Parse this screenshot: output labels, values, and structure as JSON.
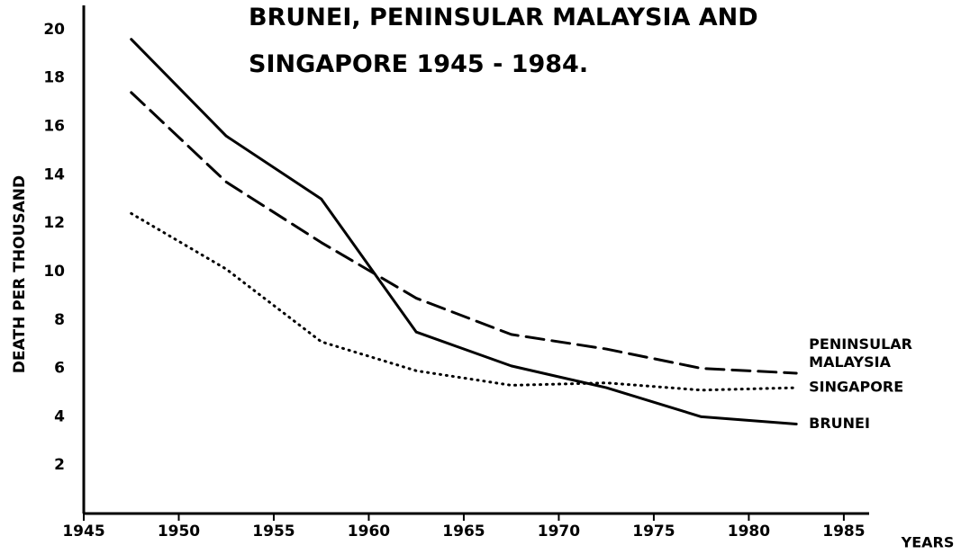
{
  "chart_data": {
    "type": "line",
    "title": [
      "BRUNEI, PENINSULAR MALAYSIA  AND",
      "SINGAPORE  1945 - 1984."
    ],
    "y_label": "DEATH PER THOUSAND",
    "x_label": "YEARS",
    "x": [
      1947.5,
      1952.5,
      1957.5,
      1962.5,
      1967.5,
      1972.5,
      1977.5,
      1982.5
    ],
    "series": [
      {
        "name": "PENINSULAR MALAYSIA",
        "color": "#000000",
        "style": "dashed",
        "values": [
          17.4,
          13.7,
          11.2,
          8.9,
          7.4,
          6.8,
          6.0,
          5.8
        ]
      },
      {
        "name": "SINGAPORE",
        "color": "#000000",
        "style": "dotted",
        "values": [
          12.4,
          10.1,
          7.1,
          5.9,
          5.3,
          5.4,
          5.1,
          5.2
        ]
      },
      {
        "name": "BRUNEI",
        "color": "#000000",
        "style": "solid",
        "values": [
          19.6,
          15.6,
          13.0,
          7.5,
          6.1,
          5.2,
          4.0,
          3.7
        ]
      }
    ],
    "xlim": [
      1945,
      1986
    ],
    "xticks": [
      1945,
      1950,
      1955,
      1960,
      1965,
      1970,
      1975,
      1980,
      1985
    ],
    "ylim": [
      0,
      21
    ],
    "yticks": [
      2,
      4,
      6,
      8,
      10,
      12,
      14,
      16,
      18,
      20
    ],
    "grid": false
  }
}
